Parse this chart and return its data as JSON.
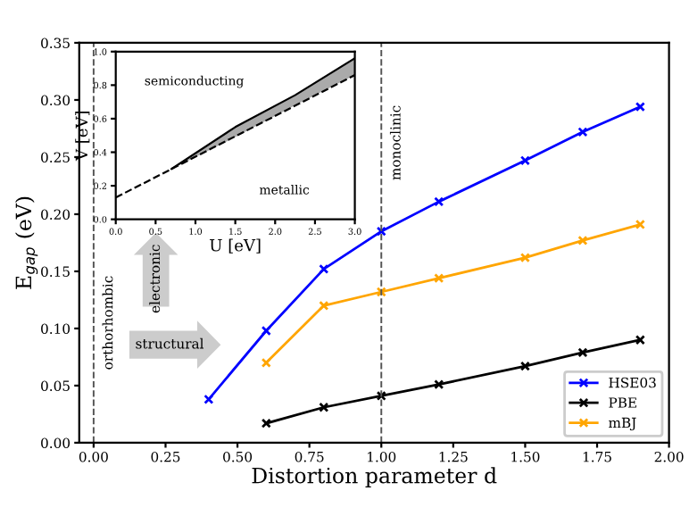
{
  "chart_data": [
    {
      "type": "line",
      "xlabel": "Distortion parameter d",
      "ylabel": "E$_{gap}$ (eV)",
      "xlim": [
        -0.05,
        2.0
      ],
      "ylim": [
        0.0,
        0.35
      ],
      "xticks": [
        {
          "value": 0,
          "label": "0.00"
        },
        0.25,
        {
          "value": 0.5,
          "label": "0.50"
        },
        0.75,
        {
          "value": 1,
          "label": "1.00"
        },
        1.25,
        {
          "value": 1.5,
          "label": "1.50"
        },
        1.75,
        {
          "value": 2,
          "label": "2.00"
        }
      ],
      "yticks": [
        {
          "value": 0,
          "label": "0.00"
        },
        0.05,
        {
          "value": 0.1,
          "label": "0.10"
        },
        0.15,
        {
          "value": 0.2,
          "label": "0.20"
        },
        0.25,
        {
          "value": 0.3,
          "label": "0.30"
        },
        0.35
      ],
      "marker": "cross",
      "grid": false,
      "legend": "bottom right",
      "series": [
        {
          "name": "HSE03",
          "color": "#0000ff",
          "x": [
            0.4,
            0.6,
            0.8,
            1.0,
            1.2,
            1.5,
            1.7,
            1.9
          ],
          "values": [
            0.038,
            0.098,
            0.152,
            0.185,
            0.211,
            0.247,
            0.272,
            0.294
          ]
        },
        {
          "name": "PBE",
          "color": "#000000",
          "x": [
            0.6,
            0.8,
            1.0,
            1.2,
            1.5,
            1.7,
            1.9
          ],
          "values": [
            0.017,
            0.031,
            0.041,
            0.051,
            0.067,
            0.079,
            0.09
          ]
        },
        {
          "name": "mBJ",
          "color": "#ffa500",
          "x": [
            0.6,
            0.8,
            1.0,
            1.2,
            1.5,
            1.7,
            1.9
          ],
          "values": [
            0.07,
            0.12,
            0.132,
            0.144,
            0.162,
            0.177,
            0.191
          ]
        }
      ],
      "ref_lines": [
        {
          "axis": "x",
          "value": 0,
          "label": "orthorhombic",
          "color": "#555555",
          "line_style": "dashed"
        },
        {
          "axis": "x",
          "value": 1,
          "label": "monoclinic",
          "color": "#555555",
          "line_style": "dashed"
        }
      ],
      "annotations": [
        "electronic",
        "structural"
      ]
    },
    {
      "type": "line",
      "xlabel": "U [eV]",
      "ylabel": "V [eV]",
      "xlim": [
        0.0,
        3.0
      ],
      "ylim": [
        0.0,
        1.0
      ],
      "xticks": [
        {
          "value": 0,
          "label": "0.0"
        },
        0.5,
        {
          "value": 1,
          "label": "1.0"
        },
        1.5,
        {
          "value": 2,
          "label": "2.0"
        },
        2.5,
        {
          "value": 3,
          "label": "3.0"
        }
      ],
      "yticks": [
        {
          "value": 0,
          "label": "0.0"
        },
        0.2,
        0.4,
        0.6,
        0.8,
        {
          "value": 1,
          "label": "1.0"
        }
      ],
      "grid": false,
      "marker": "none",
      "series": [
        {
          "color": "#000000",
          "line_style": "dashed",
          "x": [
            0.0,
            0.7,
            3.0
          ],
          "values": [
            0.13,
            0.3,
            0.86
          ]
        },
        {
          "color": "#000000",
          "line_style": "solid",
          "x": [
            0.7,
            1.5,
            2.25,
            3.0
          ],
          "values": [
            0.3,
            0.55,
            0.74,
            0.96
          ],
          "lower": [
            0.3,
            0.49,
            0.68,
            0.86
          ],
          "upper": [
            0.3,
            0.55,
            0.74,
            0.96
          ]
        }
      ],
      "annotations": [
        "semiconducting",
        "metallic"
      ]
    }
  ]
}
